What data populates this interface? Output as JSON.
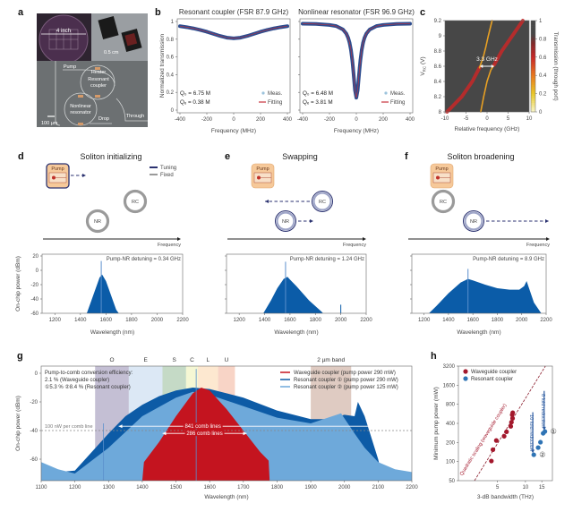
{
  "panel_labels": {
    "a": "a",
    "b": "b",
    "c": "c",
    "d": "d",
    "e": "e",
    "f": "f",
    "g": "g",
    "h": "h"
  },
  "panel_a": {
    "wafer_size": "4 inch",
    "chip_scale": "0.5 cm",
    "pump": "Pump",
    "heater": "Heater",
    "resonant_coupler": [
      "Resonant",
      "coupler"
    ],
    "nonlinear_resonator": [
      "Nonlinear",
      "resonator"
    ],
    "scale_bar": "100 µm",
    "drop": "Drop",
    "through": "Through"
  },
  "diagrams": {
    "legend": {
      "tuning": "Tuning",
      "fixed": "Fixed"
    },
    "tuning_color": "#2b3270",
    "fixed_color": "#9a9a9a",
    "pump_color": "#f6c99a",
    "pump_label": "Pump",
    "rc_label": "RC",
    "nr_label": "NR",
    "axis_label": "Frequency",
    "d": {
      "title": "Soliton initializing",
      "tuning": [
        "pump"
      ]
    },
    "e": {
      "title": "Swapping",
      "tuning": [
        "rc",
        "nr"
      ]
    },
    "f": {
      "title": "Soliton broadening",
      "tuning": [
        "nr"
      ]
    }
  },
  "chart_data": [
    {
      "id": "b-left",
      "type": "line",
      "title": "Resonant coupler (FSR 87.9 GHz)",
      "xlabel": "Frequency (MHz)",
      "ylabel": "Normalized transmission",
      "xlim": [
        -400,
        400
      ],
      "ylim": [
        0,
        1
      ],
      "xticks": [
        -400,
        -200,
        0,
        200,
        400
      ],
      "yticks": [
        0,
        0.2,
        0.4,
        0.6,
        0.8,
        1
      ],
      "legend_position": "bottom-right",
      "series": [
        {
          "name": "Meas.",
          "style": "markers",
          "color": "#2e4d8f",
          "x": [
            -400,
            -350,
            -300,
            -250,
            -200,
            -150,
            -100,
            -50,
            0,
            50,
            100,
            150,
            200,
            250,
            300,
            350,
            400
          ],
          "y": [
            0.947,
            0.936,
            0.922,
            0.905,
            0.884,
            0.86,
            0.836,
            0.817,
            0.81,
            0.817,
            0.836,
            0.86,
            0.884,
            0.905,
            0.922,
            0.936,
            0.947
          ]
        },
        {
          "name": "Fitting",
          "style": "line",
          "color": "#c8323c",
          "x": [
            -400,
            -350,
            -300,
            -250,
            -200,
            -150,
            -100,
            -50,
            0,
            50,
            100,
            150,
            200,
            250,
            300,
            350,
            400
          ],
          "y": [
            0.947,
            0.936,
            0.922,
            0.905,
            0.884,
            0.86,
            0.836,
            0.817,
            0.81,
            0.817,
            0.836,
            0.86,
            0.884,
            0.905,
            0.922,
            0.936,
            0.947
          ]
        }
      ],
      "annotations": [
        "Q₀ = 6.75 M",
        "Qₑ = 0.38 M"
      ]
    },
    {
      "id": "b-right",
      "type": "line",
      "title": "Nonlinear resonator (FSR 96.9 GHz)",
      "xlabel": "Frequency (MHz)",
      "ylabel": "",
      "xlim": [
        -400,
        400
      ],
      "ylim": [
        0,
        1
      ],
      "xticks": [
        -400,
        -200,
        0,
        200,
        400
      ],
      "yticks": [
        0,
        0.2,
        0.4,
        0.6,
        0.8,
        1
      ],
      "legend_position": "bottom-right",
      "series": [
        {
          "name": "Meas.",
          "style": "markers",
          "color": "#2e4d8f",
          "x": [
            -400,
            -300,
            -200,
            -150,
            -100,
            -75,
            -60,
            -50,
            -40,
            -30,
            -25,
            -20,
            -10,
            0,
            10,
            20,
            25,
            30,
            40,
            50,
            60,
            75,
            100,
            150,
            200,
            300,
            400
          ],
          "y": [
            0.975,
            0.972,
            0.961,
            0.948,
            0.91,
            0.864,
            0.812,
            0.758,
            0.678,
            0.56,
            0.483,
            0.398,
            0.224,
            0.14,
            0.224,
            0.398,
            0.483,
            0.56,
            0.678,
            0.758,
            0.812,
            0.864,
            0.91,
            0.948,
            0.961,
            0.972,
            0.975
          ]
        },
        {
          "name": "Fitting",
          "style": "line",
          "color": "#c8323c",
          "x": [
            -400,
            -300,
            -200,
            -150,
            -100,
            -75,
            -60,
            -50,
            -40,
            -30,
            -25,
            -20,
            -10,
            0,
            10,
            20,
            25,
            30,
            40,
            50,
            60,
            75,
            100,
            150,
            200,
            300,
            400
          ],
          "y": [
            0.975,
            0.972,
            0.961,
            0.948,
            0.91,
            0.864,
            0.812,
            0.758,
            0.678,
            0.56,
            0.483,
            0.398,
            0.224,
            0.14,
            0.224,
            0.398,
            0.483,
            0.56,
            0.678,
            0.758,
            0.812,
            0.864,
            0.91,
            0.948,
            0.961,
            0.972,
            0.975
          ]
        }
      ],
      "annotations": [
        "Q₀ = 6.48 M",
        "Qₑ = 3.81 M"
      ]
    },
    {
      "id": "c",
      "type": "heatmap",
      "xlabel": "Relative frequency (GHz)",
      "ylabel": {
        "main": "V",
        "sub": "RC",
        "unit": " (V)"
      },
      "xlim": [
        -10,
        10
      ],
      "ylim": [
        8,
        9.2
      ],
      "xticks": [
        -10,
        -5,
        0,
        5,
        10
      ],
      "yticks": [
        8,
        8.2,
        8.4,
        8.6,
        8.8,
        9,
        9.2
      ],
      "background_transmission": 0.9,
      "colorbar": {
        "label": "Transmission (through port)",
        "range": [
          0,
          1
        ],
        "ticks": [
          0,
          0.2,
          0.4,
          0.6,
          0.8,
          1
        ]
      },
      "traces": [
        {
          "transmission": 0.6,
          "x": [
            -9.5,
            -6,
            -3.5,
            -1.8
          ],
          "y": [
            8,
            8.2,
            8.4,
            8.58
          ]
        },
        {
          "transmission": 0.3,
          "x": [
            -1.8,
            -0.9,
            -0.3,
            0.3,
            1.2
          ],
          "y": [
            8.58,
            8.72,
            8.85,
            9.0,
            9.2
          ]
        },
        {
          "transmission": 0.3,
          "x": [
            -1.5,
            -0.8,
            0,
            0.9,
            1.7
          ],
          "y": [
            8,
            8.2,
            8.4,
            8.55,
            8.62
          ]
        },
        {
          "transmission": 0.6,
          "x": [
            1.7,
            3.5,
            6,
            8.5
          ],
          "y": [
            8.62,
            8.8,
            9.0,
            9.2
          ]
        }
      ],
      "annotation": {
        "text": "3.3 GHz",
        "y": 8.6,
        "x": [
          -1.65,
          1.65
        ]
      }
    },
    {
      "id": "d",
      "type": "area",
      "xlabel": "Wavelength (nm)",
      "ylabel": "On-chip power (dBm)",
      "xlim": [
        1100,
        2200
      ],
      "ylim": [
        -60,
        22.5
      ],
      "xticks": [
        1200,
        1400,
        1600,
        1800,
        2000,
        2200
      ],
      "yticks": [
        -60,
        -40,
        -20,
        0,
        20
      ],
      "annotation": "Pump-NR detuning = 0.34 GHz",
      "color": "#0b5ca8",
      "x": [
        1450,
        1480,
        1520,
        1550,
        1570,
        1600,
        1640,
        1680,
        1700
      ],
      "y": [
        -60,
        -45,
        -25,
        -10,
        -6,
        -15,
        -35,
        -55,
        -60
      ],
      "spikes": [
        {
          "x": 1563,
          "y": 13
        }
      ]
    },
    {
      "id": "e",
      "type": "area",
      "xlabel": "Wavelength (nm)",
      "ylabel": "",
      "xlim": [
        1100,
        2200
      ],
      "ylim": [
        -60,
        22.5
      ],
      "xticks": [
        1200,
        1400,
        1600,
        1800,
        2000,
        2200
      ],
      "yticks": [
        -60,
        -40,
        -20,
        0,
        20
      ],
      "annotation": "Pump-NR detuning = 1.24 GHz",
      "color": "#0b5ca8",
      "x": [
        1390,
        1450,
        1500,
        1550,
        1580,
        1600,
        1650,
        1700,
        1750,
        1800,
        1850,
        1860
      ],
      "y": [
        -60,
        -42,
        -25,
        -12,
        -9,
        -13,
        -22,
        -32,
        -42,
        -50,
        -58,
        -60
      ],
      "spikes": [
        {
          "x": 1565,
          "y": 12
        },
        {
          "x": 2000,
          "y": -48
        }
      ]
    },
    {
      "id": "f",
      "type": "area",
      "xlabel": "Wavelength (nm)",
      "ylabel": "",
      "xlim": [
        1100,
        2200
      ],
      "ylim": [
        -60,
        22.5
      ],
      "xticks": [
        1200,
        1400,
        1600,
        1800,
        2000,
        2200
      ],
      "yticks": [
        -60,
        -40,
        -20,
        0,
        20
      ],
      "annotation": "Pump-NR detuning = 8.9 GHz",
      "color": "#0b5ca8",
      "x": [
        1240,
        1300,
        1400,
        1500,
        1560,
        1600,
        1700,
        1800,
        1900,
        1980,
        2020,
        2040,
        2060,
        2100,
        2160
      ],
      "y": [
        -60,
        -50,
        -32,
        -17,
        -12,
        -14,
        -20,
        -25,
        -27,
        -27,
        -22,
        -15,
        -25,
        -45,
        -60
      ],
      "spikes": [
        {
          "x": 1560,
          "y": 2
        }
      ]
    },
    {
      "id": "g",
      "type": "area",
      "xlabel": "Wavelength (nm)",
      "ylabel": "On-chip power (dBm)",
      "xlim": [
        1100,
        2200
      ],
      "ylim": [
        -75,
        5
      ],
      "xticks": [
        1100,
        1200,
        1300,
        1400,
        1500,
        1600,
        1700,
        1800,
        1900,
        2000,
        2100,
        2200
      ],
      "yticks": [
        -60,
        -40,
        -20,
        0
      ],
      "legend_position": "top-right",
      "bands": [
        {
          "label": "O",
          "range": [
            1260,
            1360
          ],
          "color": "#9c94b8"
        },
        {
          "label": "E",
          "range": [
            1360,
            1460
          ],
          "color": "#c5d8ee"
        },
        {
          "label": "S",
          "range": [
            1460,
            1530
          ],
          "color": "#9fc2a0"
        },
        {
          "label": "C",
          "range": [
            1530,
            1565
          ],
          "color": "#eef2b8"
        },
        {
          "label": "L",
          "range": [
            1565,
            1625
          ],
          "color": "#fbd9b0"
        },
        {
          "label": "U",
          "range": [
            1625,
            1675
          ],
          "color": "#f4b8a0"
        },
        {
          "label": "2 µm band",
          "range": [
            1900,
            2020
          ],
          "color": "#c9a99a"
        }
      ],
      "series": [
        {
          "name": "Resonant coupler ① (pump power 290 mW)",
          "color": "#0d5ba6",
          "x": [
            1100,
            1200,
            1250,
            1300,
            1350,
            1400,
            1450,
            1500,
            1550,
            1600,
            1700,
            1800,
            1900,
            1950,
            2000,
            2030,
            2040,
            2060,
            2080,
            2100,
            2110
          ],
          "y": [
            -70,
            -68,
            -55,
            -42,
            -30,
            -22,
            -16,
            -12,
            -10,
            -11,
            -17,
            -26,
            -32,
            -32,
            -29,
            -30,
            -20,
            -30,
            -45,
            -60,
            -70
          ]
        },
        {
          "name": "Resonant coupler ② (pump power 125 mW)",
          "color": "#6ea9da",
          "x": [
            1100,
            1150,
            1200,
            1300,
            1400,
            1500,
            1550,
            1600,
            1700,
            1800,
            1900,
            1990,
            2030,
            2060,
            2100,
            2150,
            2200
          ],
          "y": [
            -62,
            -67,
            -70,
            -52,
            -30,
            -17,
            -13,
            -15,
            -23,
            -31,
            -35,
            -28,
            -42,
            -52,
            -62,
            -67,
            -69
          ]
        },
        {
          "name": "Waveguide coupler (pump power 290 mW)",
          "color": "#c4141f",
          "x": [
            1400,
            1405,
            1450,
            1500,
            1550,
            1575,
            1600,
            1650,
            1700,
            1750,
            1775,
            1778
          ],
          "y": [
            -75,
            -62,
            -48,
            -30,
            -14,
            -10,
            -12,
            -25,
            -40,
            -55,
            -61,
            -75
          ]
        }
      ],
      "spikes": [
        {
          "x": 1560,
          "y": 3
        },
        {
          "x": 1285,
          "y": -35
        }
      ],
      "reference_line": {
        "y": -40,
        "label": "100 nW per comb line"
      },
      "spans": [
        {
          "label": "841 comb lines",
          "x": [
            1330,
            2090
          ],
          "y": -37
        },
        {
          "label": "286 comb lines",
          "x": [
            1460,
            1710
          ],
          "y": -42
        }
      ],
      "efficiency_text": [
        "Pump-to-comb conversion efficiency:",
        "2.1 % (Waveguide coupler)",
        "①5.3 % ②8.4 % (Resonant coupler)"
      ]
    },
    {
      "id": "h",
      "type": "scatter",
      "xlabel": "3-dB bandwidth (THz)",
      "ylabel": "Minimum pump power (mW)",
      "xscale": "log",
      "yscale": "log",
      "xlim": [
        1.9,
        19.5
      ],
      "ylim": [
        50,
        3200
      ],
      "xticks": [
        5,
        10,
        15
      ],
      "yticks": [
        50,
        100,
        200,
        400,
        800,
        1600,
        3200
      ],
      "legend_position": "top-left",
      "series": [
        {
          "name": "Waveguide coupler",
          "color": "#a3182c",
          "x": [
            4.3,
            4.47,
            4.86,
            5.9,
            6.26,
            6.95,
            7.07,
            7.27,
            7.2,
            7.3
          ],
          "y": [
            102,
            154,
            215,
            251,
            295,
            359,
            417,
            480,
            546,
            590
          ]
        },
        {
          "name": "Resonant coupler",
          "color": "#2f74b5",
          "x": [
            12.3,
            13.7,
            14.5,
            15.5,
            16.2
          ],
          "y": [
            128,
            166,
            202,
            279,
            298
          ]
        }
      ],
      "point_labels": [
        {
          "text": "①",
          "x": 16.2,
          "y": 298
        },
        {
          "text": "②",
          "x": 12.3,
          "y": 128
        }
      ],
      "fit_line": {
        "label": "Quadratic scaling (waveguide coupler)",
        "points": [
          [
            2.83,
            50
          ],
          [
            16.4,
            3200
          ]
        ]
      },
      "reductions": [
        {
          "label": "10 fold reduction",
          "x": 12,
          "y": [
            600,
            135
          ]
        },
        {
          "label": "8 fold reduction",
          "x": 15.9,
          "y": [
            1300,
            310
          ]
        }
      ]
    }
  ]
}
